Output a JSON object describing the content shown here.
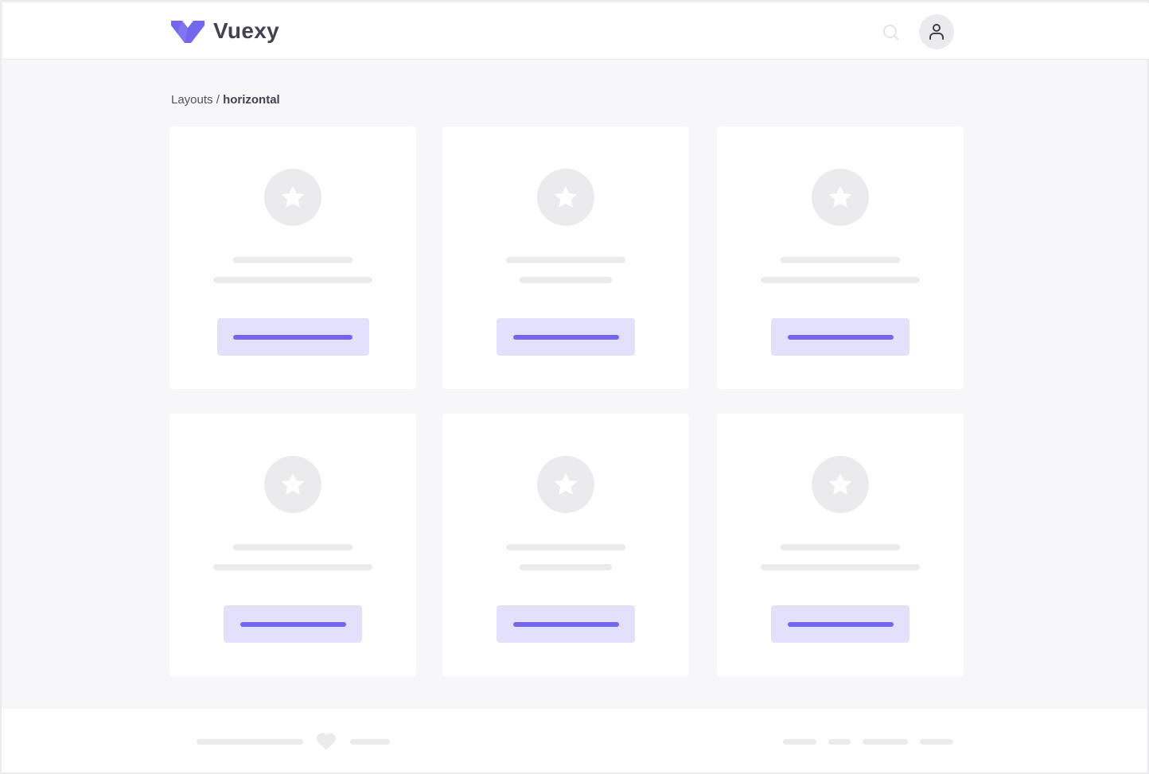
{
  "header": {
    "brand": "Vuexy",
    "logo_icon": "vuexy-logo",
    "search_icon": "search-icon",
    "avatar_icon": "user-icon"
  },
  "breadcrumb": {
    "parent": "Layouts",
    "separator": " / ",
    "current": "horizontal"
  },
  "colors": {
    "primary": "#7367f0",
    "primary_light": "#e3e0fc",
    "placeholder": "#ebebee",
    "background": "#f7f7f9",
    "text": "#444050"
  },
  "cards": {
    "count": 6,
    "icon": "star-icon"
  },
  "footer": {
    "icon": "heart-icon"
  }
}
